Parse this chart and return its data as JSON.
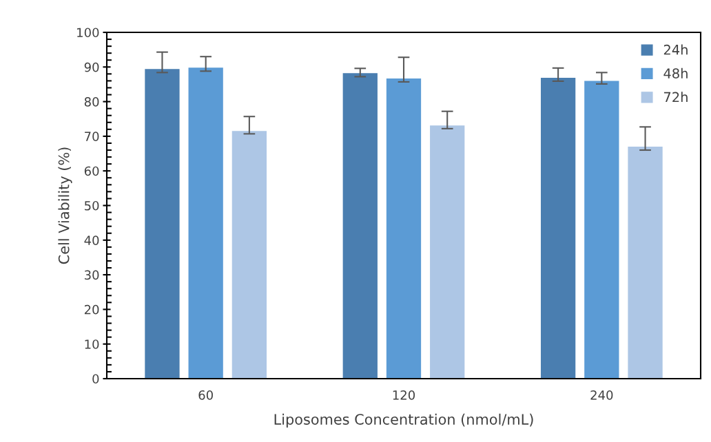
{
  "chart_data": {
    "type": "bar",
    "xlabel": "Liposomes Concentration (nmol/mL)",
    "ylabel": "Cell Viability (%)",
    "categories": [
      "60",
      "120",
      "240"
    ],
    "series": [
      {
        "name": "24h",
        "color": "#4a7eb0",
        "values": [
          89.4,
          88.2,
          86.9
        ],
        "errors": [
          [
            88.4,
            94.3
          ],
          [
            87.2,
            89.6
          ],
          [
            85.9,
            89.7
          ]
        ]
      },
      {
        "name": "48h",
        "color": "#5b9bd5",
        "values": [
          89.8,
          86.7,
          86.0
        ],
        "errors": [
          [
            88.8,
            93.0
          ],
          [
            85.7,
            92.8
          ],
          [
            85.1,
            88.4
          ]
        ]
      },
      {
        "name": "72h",
        "color": "#adc6e5",
        "values": [
          71.5,
          73.1,
          67.0
        ],
        "errors": [
          [
            70.7,
            75.7
          ],
          [
            72.2,
            77.2
          ],
          [
            66.0,
            72.7
          ]
        ]
      }
    ],
    "ylim": [
      0,
      100
    ],
    "yticks": [
      0,
      10,
      20,
      30,
      40,
      50,
      60,
      70,
      80,
      90,
      100
    ],
    "grid": false,
    "legend": "top right"
  }
}
